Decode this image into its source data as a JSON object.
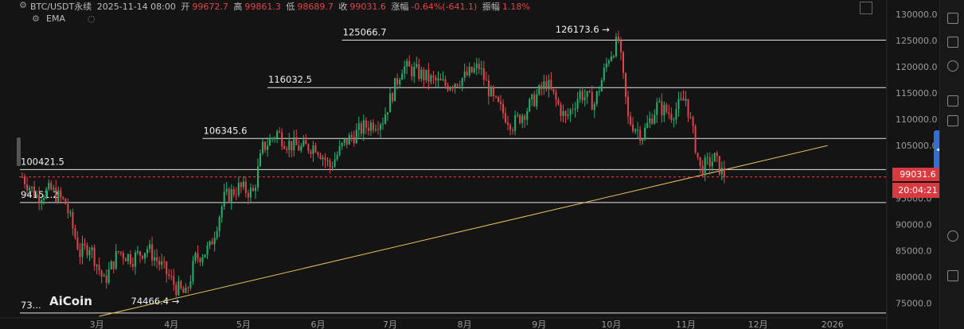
{
  "header": {
    "symbol": "BTC/USDT永续",
    "datetime": "2025-11-14 08:00",
    "open_label": "开",
    "open": "99672.7",
    "high_label": "高",
    "high": "99861.3",
    "low_label": "低",
    "low": "98689.7",
    "close_label": "收",
    "close": "99031.6",
    "change_label": "涨幅",
    "change": "-0.64%(-641.1)",
    "amp_label": "振幅",
    "amp": "1.18%"
  },
  "indicator": "EMA",
  "watermark": "AiCoin",
  "current_price": "99031.6",
  "countdown": "20:04:21",
  "colors": {
    "up": "#23b26d",
    "down": "#e0454b",
    "bg": "#141414",
    "trend": "#e6c25a",
    "level": "#e6e6e6",
    "accent": "#2f6fd6"
  },
  "chart_data": {
    "type": "candlestick",
    "y_axis": {
      "min": 72500,
      "max": 131500,
      "ticks": [
        75000,
        80000,
        85000,
        90000,
        95000,
        100000,
        105000,
        110000,
        115000,
        120000,
        125000,
        130000
      ],
      "position": "right"
    },
    "x_axis": {
      "labels": [
        "3月",
        "4月",
        "5月",
        "6月",
        "7月",
        "8月",
        "9月",
        "10月",
        "11月",
        "12月",
        "2026"
      ],
      "label_days": [
        31,
        62,
        92,
        123,
        153,
        184,
        215,
        245,
        276,
        306,
        337
      ]
    },
    "horizontal_levels": [
      {
        "value": 125066.7,
        "label": "125066.7",
        "from_day": 134
      },
      {
        "value": 116032.5,
        "label": "116032.5",
        "from_day": 103
      },
      {
        "value": 106345.6,
        "label": "106345.6",
        "from_day": 76
      },
      {
        "value": 100421.5,
        "label": "100421.5",
        "from_day": 0
      },
      {
        "value": 94151.2,
        "label": "94151.2",
        "from_day": 0
      },
      {
        "value": 73125,
        "label": "73...",
        "from_day": 0
      }
    ],
    "annotations": [
      {
        "text": "126173.6",
        "day": 247,
        "value": 126173.6
      },
      {
        "text": "74466.4",
        "day": 68,
        "value": 74466.4
      }
    ],
    "trendline": {
      "from": {
        "day": 32,
        "value": 72500
      },
      "to": {
        "day": 335,
        "value": 105000
      }
    },
    "anchors": [
      [
        0,
        99000
      ],
      [
        6,
        95500
      ],
      [
        12,
        96500
      ],
      [
        18,
        94000
      ],
      [
        24,
        84500
      ],
      [
        28,
        86000
      ],
      [
        34,
        79000
      ],
      [
        40,
        84800
      ],
      [
        46,
        83500
      ],
      [
        52,
        85500
      ],
      [
        58,
        82000
      ],
      [
        64,
        78000
      ],
      [
        68,
        76500
      ],
      [
        72,
        83500
      ],
      [
        78,
        85500
      ],
      [
        84,
        95000
      ],
      [
        90,
        97000
      ],
      [
        96,
        96000
      ],
      [
        100,
        104500
      ],
      [
        106,
        107500
      ],
      [
        110,
        105500
      ],
      [
        116,
        104500
      ],
      [
        122,
        105000
      ],
      [
        128,
        101000
      ],
      [
        134,
        105500
      ],
      [
        142,
        108500
      ],
      [
        150,
        110000
      ],
      [
        158,
        120000
      ],
      [
        164,
        119000
      ],
      [
        170,
        117500
      ],
      [
        176,
        116500
      ],
      [
        184,
        118000
      ],
      [
        190,
        120000
      ],
      [
        196,
        113500
      ],
      [
        204,
        109000
      ],
      [
        210,
        112000
      ],
      [
        218,
        117000
      ],
      [
        226,
        110000
      ],
      [
        232,
        115000
      ],
      [
        238,
        113000
      ],
      [
        244,
        122000
      ],
      [
        248,
        125000
      ],
      [
        252,
        110000
      ],
      [
        258,
        107000
      ],
      [
        264,
        112500
      ],
      [
        270,
        111000
      ],
      [
        276,
        114000
      ],
      [
        282,
        100500
      ],
      [
        288,
        102500
      ],
      [
        292,
        99031.6
      ]
    ],
    "last_day": 292
  }
}
